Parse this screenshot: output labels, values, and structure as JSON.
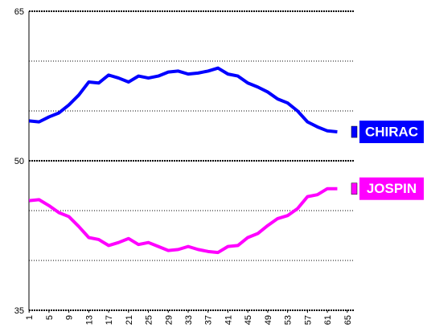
{
  "chart_data": {
    "type": "line",
    "x": [
      1,
      3,
      5,
      7,
      9,
      11,
      13,
      15,
      17,
      19,
      21,
      23,
      25,
      27,
      29,
      31,
      33,
      35,
      37,
      39,
      41,
      43,
      45,
      47,
      49,
      51,
      53,
      55,
      57,
      59,
      61,
      63
    ],
    "series": [
      {
        "name": "CHIRAC",
        "color": "#0000ff",
        "values": [
          54.0,
          53.9,
          54.4,
          54.8,
          55.6,
          56.6,
          57.9,
          57.8,
          58.6,
          58.3,
          57.9,
          58.5,
          58.3,
          58.5,
          58.9,
          59.0,
          58.7,
          58.8,
          59.0,
          59.3,
          58.7,
          58.5,
          57.8,
          57.4,
          56.9,
          56.2,
          55.8,
          55.0,
          53.9,
          53.4,
          53.0,
          52.9
        ]
      },
      {
        "name": "JOSPIN",
        "color": "#ff00ff",
        "values": [
          46.0,
          46.1,
          45.5,
          44.8,
          44.4,
          43.4,
          42.3,
          42.1,
          41.5,
          41.8,
          42.2,
          41.6,
          41.8,
          41.4,
          41.0,
          41.1,
          41.4,
          41.1,
          40.9,
          40.8,
          41.4,
          41.5,
          42.3,
          42.7,
          43.5,
          44.2,
          44.5,
          45.2,
          46.4,
          46.6,
          47.2,
          47.2
        ]
      }
    ],
    "xlim": [
      0,
      66
    ],
    "xticks": [
      1,
      5,
      9,
      13,
      17,
      21,
      25,
      29,
      33,
      37,
      41,
      45,
      49,
      53,
      57,
      61,
      65
    ],
    "ylim": [
      35,
      65
    ],
    "yticks": [
      35,
      50,
      65
    ],
    "grid_lines": [
      40,
      45,
      55,
      60
    ]
  }
}
